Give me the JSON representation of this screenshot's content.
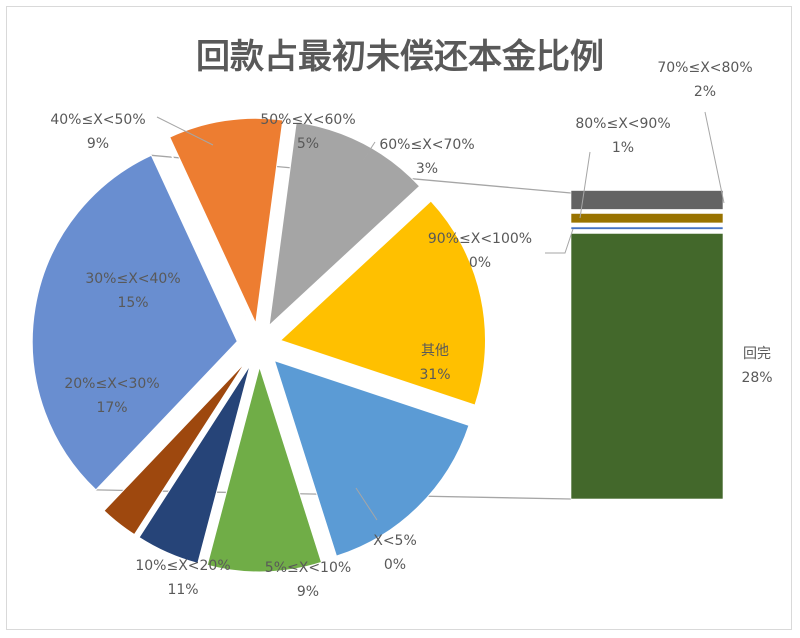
{
  "chart_data": {
    "type": "pie",
    "subtype": "bar-of-pie",
    "title": "回款占最初未偿还本金比例",
    "slices": [
      {
        "category": "X<5%",
        "value": 0,
        "label": "0%",
        "color": "#4472C4"
      },
      {
        "category": "5%≤X<10%",
        "value": 9,
        "label": "9%",
        "color": "#ED7D31"
      },
      {
        "category": "10%≤X<20%",
        "value": 11,
        "label": "11%",
        "color": "#A5A5A5"
      },
      {
        "category": "20%≤X<30%",
        "value": 17,
        "label": "17%",
        "color": "#FFC000"
      },
      {
        "category": "30%≤X<40%",
        "value": 15,
        "label": "15%",
        "color": "#5B9BD5"
      },
      {
        "category": "40%≤X<50%",
        "value": 9,
        "label": "9%",
        "color": "#70AD47"
      },
      {
        "category": "50%≤X<60%",
        "value": 5,
        "label": "5%",
        "color": "#264478"
      },
      {
        "category": "60%≤X<70%",
        "value": 3,
        "label": "3%",
        "color": "#9E480E"
      },
      {
        "category": "其他",
        "value": 31,
        "label": "31%",
        "color": "#698ED0"
      }
    ],
    "bar_segments": [
      {
        "category": "回完",
        "value": 28,
        "label": "28%",
        "color": "#43682B"
      },
      {
        "category": "90%≤X<100%",
        "value": 0,
        "label": "0%",
        "color": "#4472C4"
      },
      {
        "category": "80%≤X<90%",
        "value": 1,
        "label": "1%",
        "color": "#997300"
      },
      {
        "category": "70%≤X<80%",
        "value": 2,
        "label": "2%",
        "color": "#636363"
      }
    ],
    "legend": "none"
  }
}
